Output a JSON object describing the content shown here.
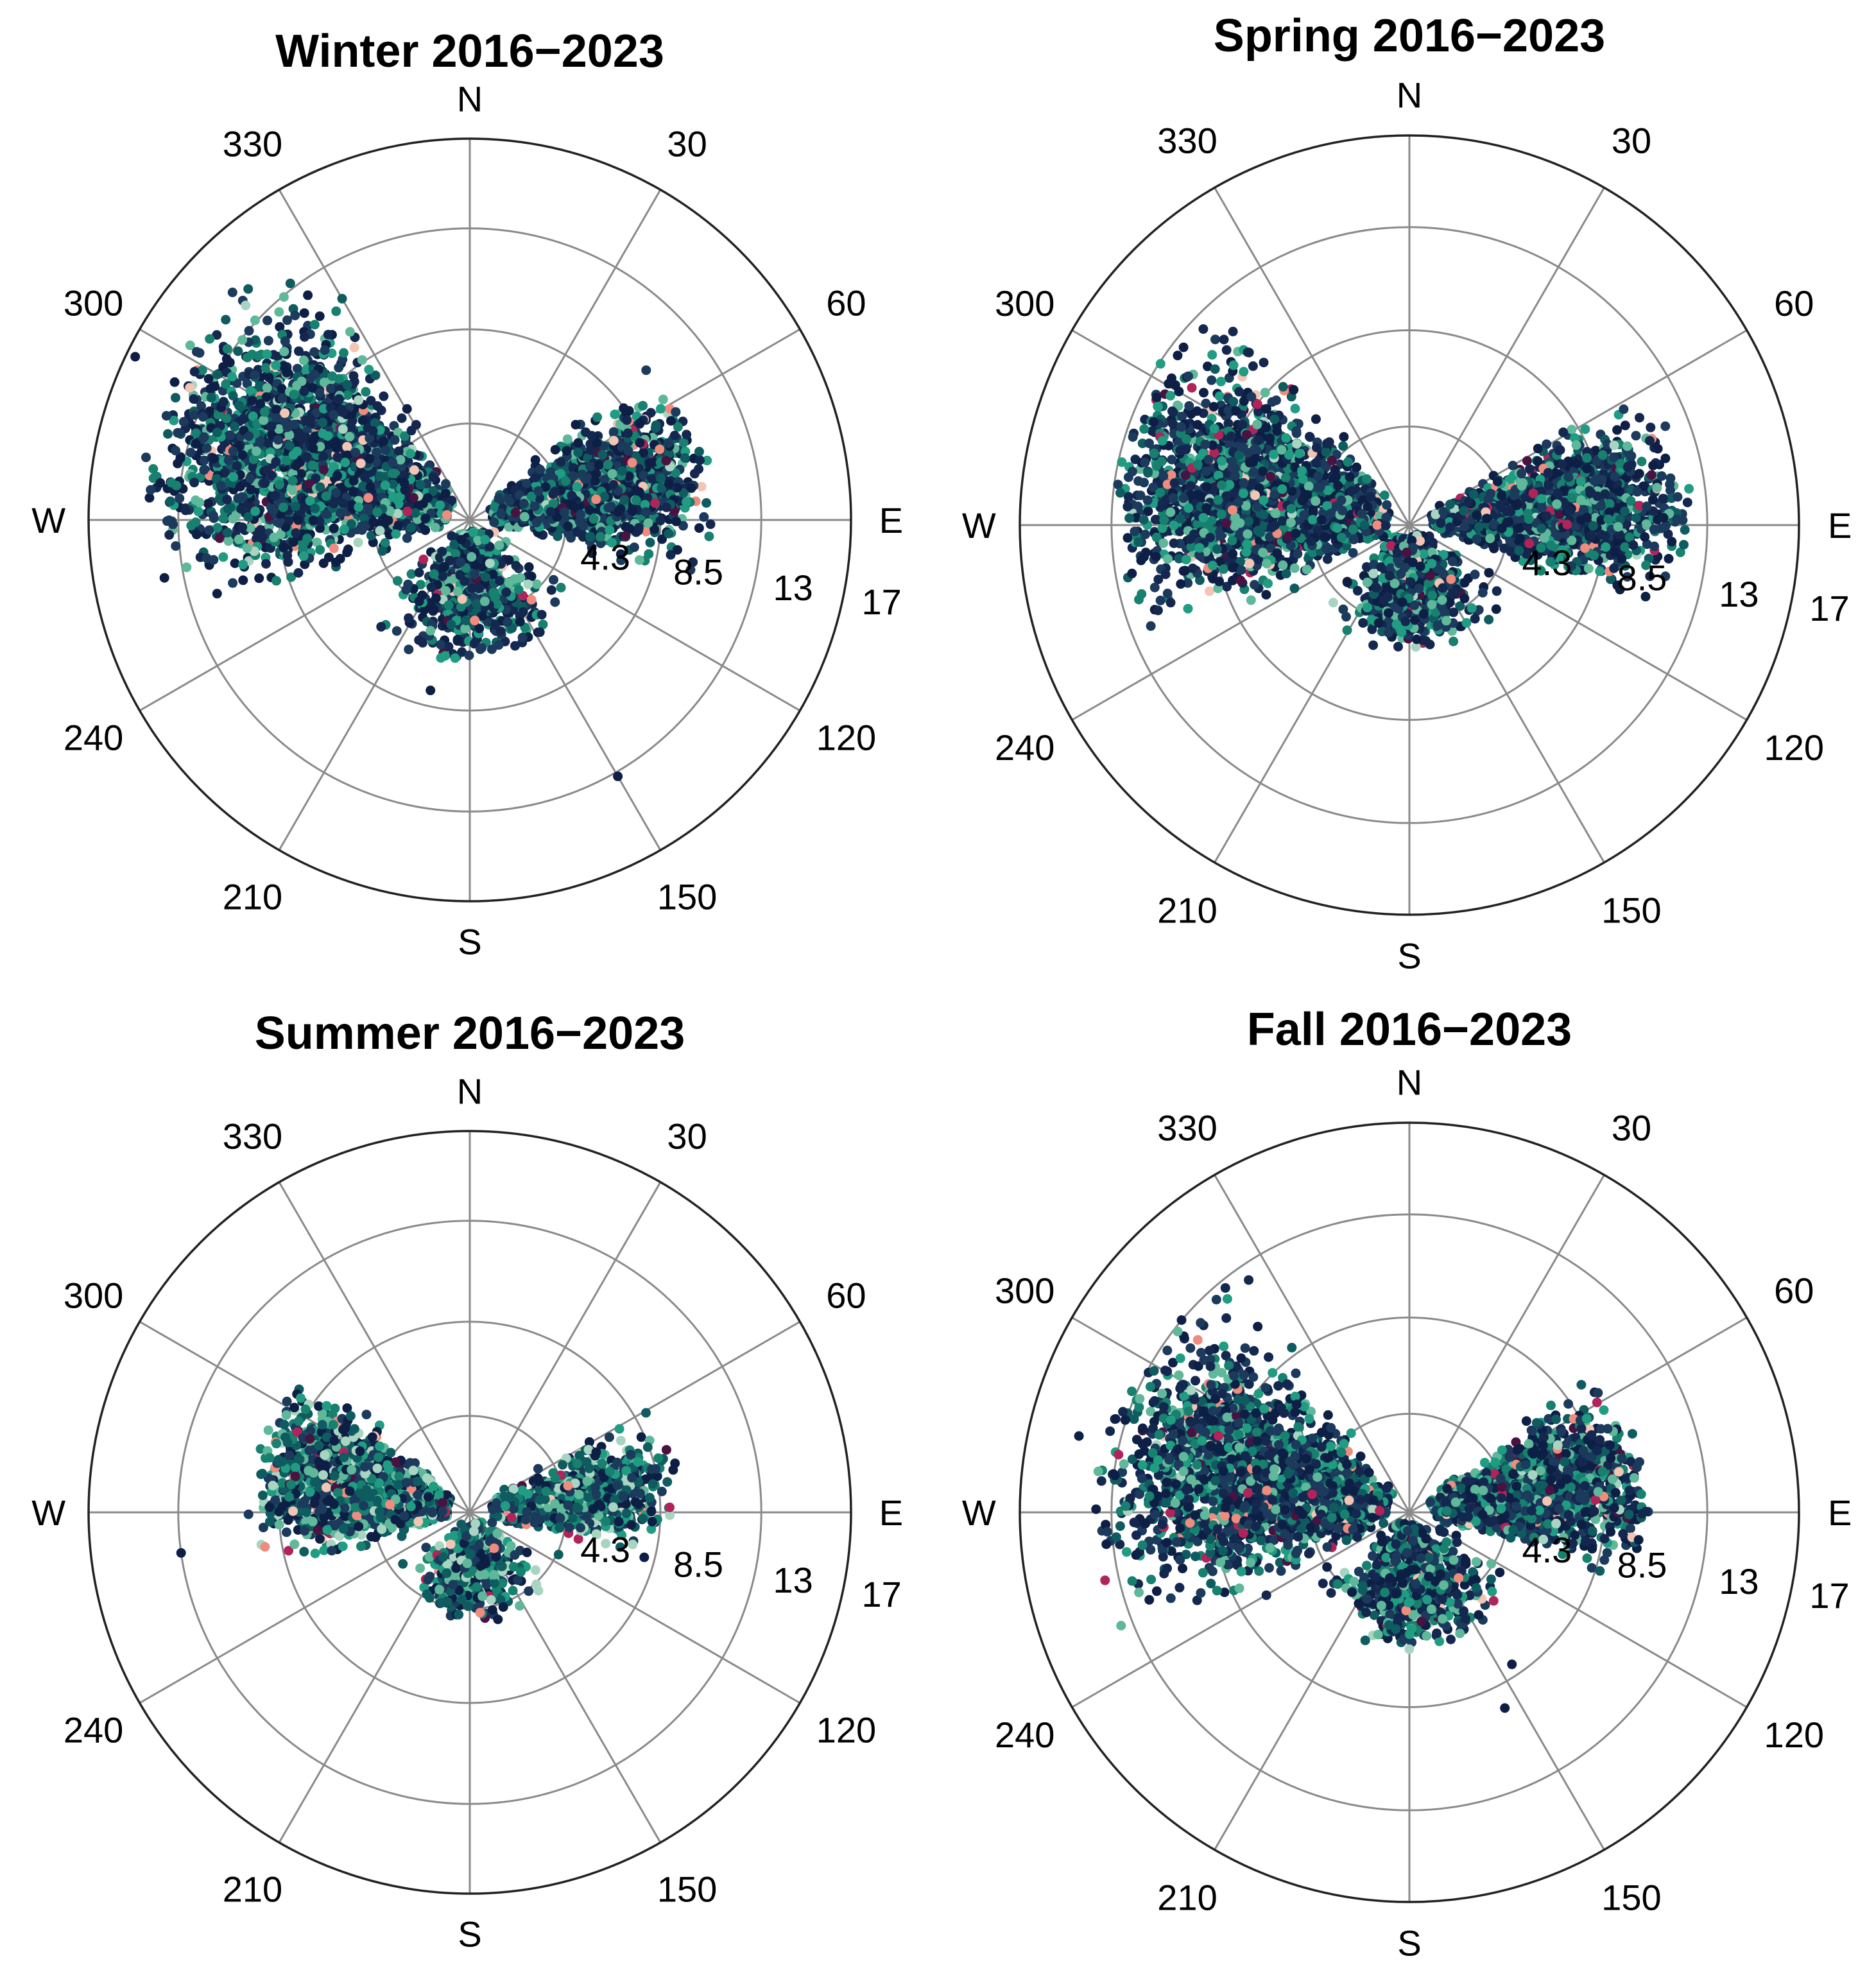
{
  "chart_data": [
    {
      "type": "scatter",
      "subtype": "polar",
      "title": "Winter 2016−2023",
      "theta_direction": "clockwise",
      "theta_zero": "N",
      "compass_labels": [
        "N",
        "E",
        "S",
        "W"
      ],
      "angle_ticks": [
        30,
        60,
        120,
        150,
        210,
        240,
        300,
        330
      ],
      "radial_ticks": [
        "4.3",
        "8.5",
        "13",
        "17"
      ],
      "rlim": [
        0,
        17
      ],
      "grid": true,
      "color_palette": [
        "#0d1f45",
        "#14284f",
        "#1b3a5c",
        "#0f5c60",
        "#17806e",
        "#1f9c82",
        "#5fb89a",
        "#a8d5c2",
        "#f2c5b4",
        "#f08c7e",
        "#b0245a",
        "#4a1240"
      ],
      "clusters": [
        {
          "direction_range": [
            245,
            335
          ],
          "speed_range": [
            1,
            15
          ],
          "count": 2600
        },
        {
          "direction_range": [
            45,
            108
          ],
          "speed_range": [
            1,
            11
          ],
          "count": 1700
        },
        {
          "direction_range": [
            110,
            240
          ],
          "speed_range": [
            0.5,
            6.5
          ],
          "count": 700
        }
      ],
      "outliers": [
        {
          "direction": 150,
          "speed": 13.2
        },
        {
          "direction": 193,
          "speed": 7.8
        },
        {
          "direction": 296,
          "speed": 16.6
        }
      ]
    },
    {
      "type": "scatter",
      "subtype": "polar",
      "title": "Spring 2016−2023",
      "theta_direction": "clockwise",
      "theta_zero": "N",
      "compass_labels": [
        "N",
        "E",
        "S",
        "W"
      ],
      "angle_ticks": [
        30,
        60,
        120,
        150,
        210,
        240,
        300,
        330
      ],
      "radial_ticks": [
        "4.3",
        "8.5",
        "13",
        "17"
      ],
      "rlim": [
        0,
        17
      ],
      "grid": true,
      "color_palette": [
        "#0d1f45",
        "#14284f",
        "#1b3a5c",
        "#0f5c60",
        "#17806e",
        "#1f9c82",
        "#5fb89a",
        "#a8d5c2",
        "#f2c5b4",
        "#f08c7e",
        "#b0245a",
        "#4a1240"
      ],
      "clusters": [
        {
          "direction_range": [
            238,
            325
          ],
          "speed_range": [
            1,
            13.5
          ],
          "count": 2300
        },
        {
          "direction_range": [
            55,
            112
          ],
          "speed_range": [
            1,
            12.5
          ],
          "count": 2000
        },
        {
          "direction_range": [
            112,
            240
          ],
          "speed_range": [
            0.5,
            5.5
          ],
          "count": 800
        }
      ],
      "outliers": []
    },
    {
      "type": "scatter",
      "subtype": "polar",
      "title": "Summer 2016−2023",
      "theta_direction": "clockwise",
      "theta_zero": "N",
      "compass_labels": [
        "N",
        "E",
        "S",
        "W"
      ],
      "angle_ticks": [
        30,
        60,
        120,
        150,
        210,
        240,
        300,
        330
      ],
      "radial_ticks": [
        "4.3",
        "8.5",
        "13",
        "17"
      ],
      "rlim": [
        0,
        17
      ],
      "grid": true,
      "color_palette": [
        "#0d1f45",
        "#1b3a5c",
        "#0f5c60",
        "#17806e",
        "#1f9c82",
        "#5fb89a",
        "#a8d5c2",
        "#f2c5b4",
        "#f08c7e",
        "#b0245a",
        "#4a1240"
      ],
      "clusters": [
        {
          "direction_range": [
            248,
            318
          ],
          "speed_range": [
            1,
            10
          ],
          "count": 1700
        },
        {
          "direction_range": [
            55,
            108
          ],
          "speed_range": [
            1,
            9.5
          ],
          "count": 900
        },
        {
          "direction_range": [
            110,
            240
          ],
          "speed_range": [
            0.5,
            5
          ],
          "count": 500
        }
      ],
      "outliers": [
        {
          "direction": 262,
          "speed": 13
        }
      ]
    },
    {
      "type": "scatter",
      "subtype": "polar",
      "title": "Fall 2016−2023",
      "theta_direction": "clockwise",
      "theta_zero": "N",
      "compass_labels": [
        "N",
        "E",
        "S",
        "W"
      ],
      "angle_ticks": [
        30,
        60,
        120,
        150,
        210,
        240,
        300,
        330
      ],
      "radial_ticks": [
        "4.3",
        "8.5",
        "13",
        "17"
      ],
      "rlim": [
        0,
        17
      ],
      "grid": true,
      "color_palette": [
        "#0d1f45",
        "#14284f",
        "#1b3a5c",
        "#0f5c60",
        "#17806e",
        "#1f9c82",
        "#5fb89a",
        "#a8d5c2",
        "#f2c5b4",
        "#f08c7e",
        "#b0245a",
        "#4a1240"
      ],
      "clusters": [
        {
          "direction_range": [
            238,
            328
          ],
          "speed_range": [
            1,
            14
          ],
          "count": 2300
        },
        {
          "direction_range": [
            50,
            110
          ],
          "speed_range": [
            1,
            10.5
          ],
          "count": 2200
        },
        {
          "direction_range": [
            110,
            240
          ],
          "speed_range": [
            0.5,
            6
          ],
          "count": 800
        }
      ],
      "outliers": [
        {
          "direction": 146,
          "speed": 8
        },
        {
          "direction": 154,
          "speed": 9.5
        },
        {
          "direction": 283,
          "speed": 14.8
        },
        {
          "direction": 264,
          "speed": 13.3
        }
      ]
    }
  ]
}
